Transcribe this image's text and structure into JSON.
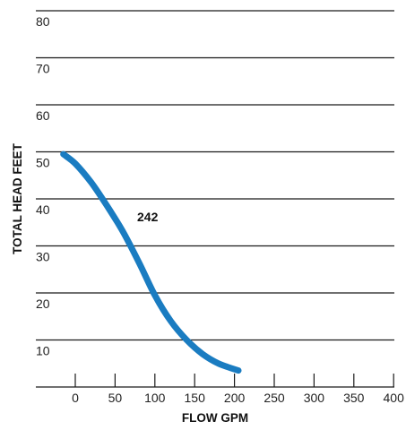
{
  "chart_data": {
    "type": "line",
    "title": "",
    "xlabel": "FLOW GPM",
    "ylabel": "TOTAL HEAD FEET",
    "xlim": [
      -50,
      400
    ],
    "ylim": [
      0,
      83
    ],
    "x_ticks": [
      0,
      50,
      100,
      150,
      200,
      250,
      300,
      350,
      400
    ],
    "y_ticks": [
      10,
      20,
      30,
      40,
      50,
      60,
      70,
      80
    ],
    "grid": true,
    "series": [
      {
        "name": "242",
        "color": "#1a7cc1",
        "x": [
          -15,
          0,
          20,
          40,
          60,
          80,
          100,
          120,
          140,
          160,
          180,
          205
        ],
        "y": [
          49.5,
          47.5,
          43.5,
          38.5,
          33,
          26.5,
          19.5,
          14,
          10,
          7,
          5,
          3.5
        ]
      }
    ]
  }
}
